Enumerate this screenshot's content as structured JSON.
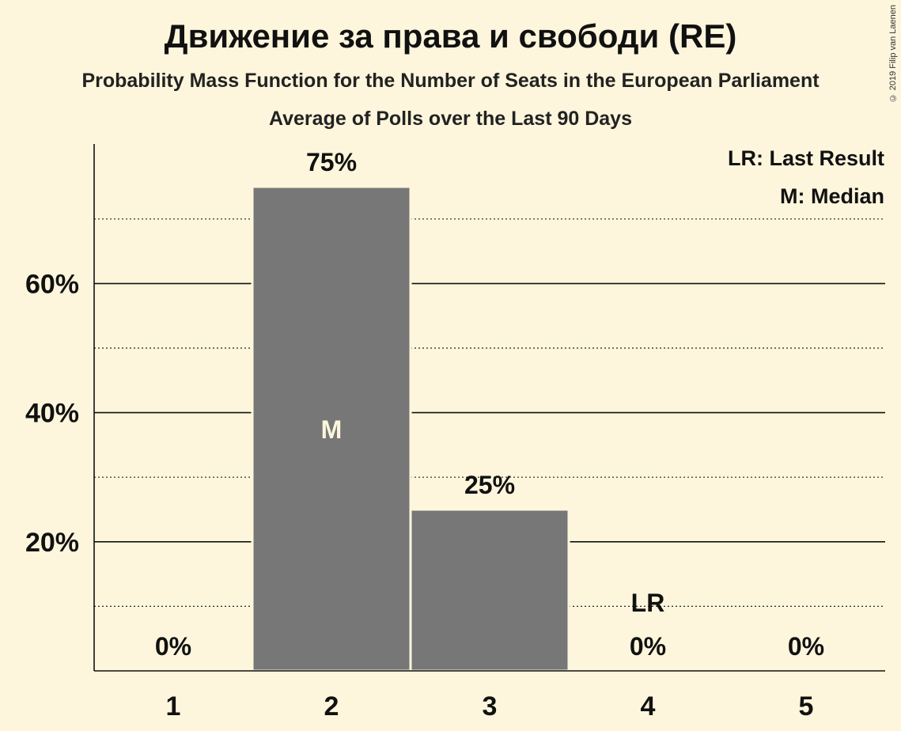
{
  "chart_data": {
    "type": "bar",
    "title": "Движение за права и свободи (RE)",
    "subtitle": "Probability Mass Function for the Number of Seats in the European Parliament",
    "subtitle2": "Average of Polls over the Last 90 Days",
    "categories": [
      "1",
      "2",
      "3",
      "4",
      "5"
    ],
    "values": [
      0,
      75,
      25,
      0,
      0
    ],
    "value_labels": [
      "0%",
      "75%",
      "25%",
      "0%",
      "0%"
    ],
    "yticks": [
      20,
      40,
      60
    ],
    "ytick_labels": [
      "20%",
      "40%",
      "60%"
    ],
    "minor_gridlines": [
      10,
      30,
      50,
      70
    ],
    "ylim": [
      0,
      81.5
    ],
    "median_category": "2",
    "median_marker": "M",
    "last_result_category": "4",
    "last_result_marker": "LR",
    "legend": [
      "LR: Last Result",
      "M: Median"
    ],
    "legend_position": "top-right",
    "bar_color": "#777777",
    "background_color": "#fdf6dc"
  },
  "copyright": "© 2019 Filip van Laenen"
}
